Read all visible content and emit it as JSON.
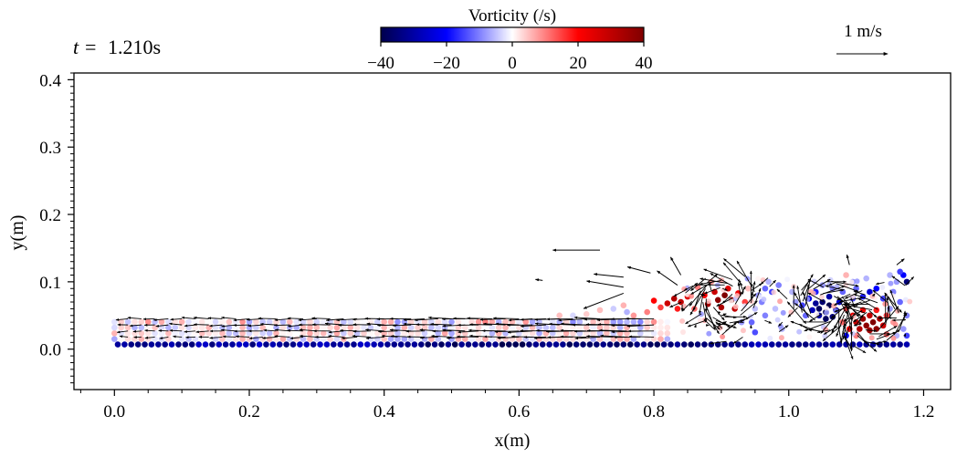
{
  "chart_data": {
    "type": "scatter",
    "time_label": "t = 1.210s",
    "time_prefix": "t =",
    "time_value": "1.210s",
    "xlabel": "x(m)",
    "ylabel": "y(m)",
    "xlim": [
      -0.06,
      1.24
    ],
    "ylim": [
      -0.06,
      0.41
    ],
    "xticks": [
      0.0,
      0.2,
      0.4,
      0.6,
      0.8,
      1.0,
      1.2
    ],
    "xtick_labels": [
      "0.0",
      "0.2",
      "0.4",
      "0.6",
      "0.8",
      "1.0",
      "1.2"
    ],
    "yticks": [
      0.0,
      0.1,
      0.2,
      0.3,
      0.4
    ],
    "ytick_labels": [
      "0.0",
      "0.1",
      "0.2",
      "0.3",
      "0.4"
    ],
    "colorbar": {
      "label": "Vorticity (/s)",
      "range": [
        -40,
        40
      ],
      "ticks": [
        -40,
        -20,
        0,
        20,
        40
      ],
      "tick_labels": [
        "−40",
        "−20",
        "0",
        "20",
        "40"
      ],
      "colormap": [
        "#00004c",
        "#0000ff",
        "#ffffff",
        "#ff0000",
        "#800000"
      ]
    },
    "velocity_scale": {
      "label": "1 m/s",
      "value": 1.0
    },
    "arrow_scale_m_per_ms": 0.076,
    "bottom_row": {
      "x_start": 0.005,
      "x_end": 1.175,
      "step": 0.01,
      "y": 0.007,
      "vorticity": -30
    },
    "fluid_region": {
      "x_start": 0.0,
      "x_end": 0.83,
      "y_bottom": 0.015,
      "y_top": 0.048
    },
    "particles": [
      {
        "x": 0.88,
        "y": 0.067,
        "w": 35
      },
      {
        "x": 0.895,
        "y": 0.073,
        "w": 38
      },
      {
        "x": 0.905,
        "y": 0.08,
        "w": 40
      },
      {
        "x": 0.915,
        "y": 0.073,
        "w": 36
      },
      {
        "x": 0.9,
        "y": 0.062,
        "w": 33
      },
      {
        "x": 0.92,
        "y": 0.06,
        "w": 30
      },
      {
        "x": 0.89,
        "y": 0.085,
        "w": 28
      },
      {
        "x": 0.91,
        "y": 0.09,
        "w": 25
      },
      {
        "x": 0.925,
        "y": 0.083,
        "w": 22
      },
      {
        "x": 0.875,
        "y": 0.08,
        "w": 20
      },
      {
        "x": 0.935,
        "y": 0.07,
        "w": 15
      },
      {
        "x": 0.86,
        "y": 0.06,
        "w": 12
      },
      {
        "x": 0.84,
        "y": 0.07,
        "w": 30
      },
      {
        "x": 0.83,
        "y": 0.075,
        "w": 32
      },
      {
        "x": 0.82,
        "y": 0.068,
        "w": 28
      },
      {
        "x": 0.85,
        "y": 0.078,
        "w": 25
      },
      {
        "x": 0.835,
        "y": 0.06,
        "w": 18
      },
      {
        "x": 0.81,
        "y": 0.062,
        "w": 15
      },
      {
        "x": 0.79,
        "y": 0.055,
        "w": 10
      },
      {
        "x": 0.77,
        "y": 0.05,
        "w": 8
      },
      {
        "x": 0.76,
        "y": 0.055,
        "w": -6
      },
      {
        "x": 0.8,
        "y": 0.072,
        "w": 20
      },
      {
        "x": 0.865,
        "y": 0.092,
        "w": 10
      },
      {
        "x": 0.885,
        "y": 0.1,
        "w": 8
      },
      {
        "x": 0.9,
        "y": 0.102,
        "w": 6
      },
      {
        "x": 0.94,
        "y": 0.09,
        "w": 5
      },
      {
        "x": 0.95,
        "y": 0.06,
        "w": -5
      },
      {
        "x": 0.955,
        "y": 0.08,
        "w": -8
      },
      {
        "x": 0.965,
        "y": 0.09,
        "w": -12
      },
      {
        "x": 0.96,
        "y": 0.07,
        "w": -10
      },
      {
        "x": 0.975,
        "y": 0.085,
        "w": -15
      },
      {
        "x": 0.97,
        "y": 0.1,
        "w": -6
      },
      {
        "x": 0.985,
        "y": 0.095,
        "w": -10
      },
      {
        "x": 0.945,
        "y": 0.04,
        "w": -12
      },
      {
        "x": 0.93,
        "y": 0.04,
        "w": -8
      },
      {
        "x": 0.95,
        "y": 0.025,
        "w": -14
      },
      {
        "x": 0.965,
        "y": 0.05,
        "w": -10
      },
      {
        "x": 0.98,
        "y": 0.06,
        "w": -5
      },
      {
        "x": 0.99,
        "y": 0.03,
        "w": -6
      },
      {
        "x": 1.045,
        "y": 0.06,
        "w": -38
      },
      {
        "x": 1.055,
        "y": 0.055,
        "w": -40
      },
      {
        "x": 1.06,
        "y": 0.065,
        "w": -40
      },
      {
        "x": 1.05,
        "y": 0.07,
        "w": -36
      },
      {
        "x": 1.04,
        "y": 0.068,
        "w": -32
      },
      {
        "x": 1.065,
        "y": 0.048,
        "w": -35
      },
      {
        "x": 1.055,
        "y": 0.045,
        "w": -38
      },
      {
        "x": 1.07,
        "y": 0.058,
        "w": -34
      },
      {
        "x": 1.045,
        "y": 0.05,
        "w": -30
      },
      {
        "x": 1.035,
        "y": 0.058,
        "w": -28
      },
      {
        "x": 1.06,
        "y": 0.078,
        "w": -30
      },
      {
        "x": 1.075,
        "y": 0.07,
        "w": -25
      },
      {
        "x": 1.03,
        "y": 0.075,
        "w": -22
      },
      {
        "x": 1.02,
        "y": 0.065,
        "w": -15
      },
      {
        "x": 1.04,
        "y": 0.085,
        "w": -18
      },
      {
        "x": 1.025,
        "y": 0.05,
        "w": -12
      },
      {
        "x": 1.01,
        "y": 0.07,
        "w": -8
      },
      {
        "x": 1.005,
        "y": 0.085,
        "w": -6
      },
      {
        "x": 1.08,
        "y": 0.085,
        "w": -12
      },
      {
        "x": 1.065,
        "y": 0.09,
        "w": -10
      },
      {
        "x": 1.05,
        "y": 0.095,
        "w": -8
      },
      {
        "x": 1.115,
        "y": 0.035,
        "w": 38
      },
      {
        "x": 1.125,
        "y": 0.04,
        "w": 40
      },
      {
        "x": 1.11,
        "y": 0.045,
        "w": 36
      },
      {
        "x": 1.12,
        "y": 0.028,
        "w": 35
      },
      {
        "x": 1.13,
        "y": 0.03,
        "w": 38
      },
      {
        "x": 1.105,
        "y": 0.03,
        "w": 32
      },
      {
        "x": 1.1,
        "y": 0.04,
        "w": 30
      },
      {
        "x": 1.135,
        "y": 0.045,
        "w": 33
      },
      {
        "x": 1.12,
        "y": 0.05,
        "w": 30
      },
      {
        "x": 1.14,
        "y": 0.035,
        "w": 28
      },
      {
        "x": 1.095,
        "y": 0.05,
        "w": 24
      },
      {
        "x": 1.11,
        "y": 0.058,
        "w": 22
      },
      {
        "x": 1.09,
        "y": 0.03,
        "w": 20
      },
      {
        "x": 1.13,
        "y": 0.058,
        "w": 18
      },
      {
        "x": 1.145,
        "y": 0.05,
        "w": 15
      },
      {
        "x": 1.085,
        "y": 0.06,
        "w": 15
      },
      {
        "x": 1.08,
        "y": 0.04,
        "w": 12
      },
      {
        "x": 1.1,
        "y": 0.02,
        "w": 10
      },
      {
        "x": 1.145,
        "y": 0.022,
        "w": 12
      },
      {
        "x": 1.155,
        "y": 0.04,
        "w": 8
      },
      {
        "x": 1.085,
        "y": 0.02,
        "w": -20
      },
      {
        "x": 1.095,
        "y": 0.075,
        "w": -14
      },
      {
        "x": 1.11,
        "y": 0.078,
        "w": -18
      },
      {
        "x": 1.12,
        "y": 0.085,
        "w": -25
      },
      {
        "x": 1.13,
        "y": 0.09,
        "w": -20
      },
      {
        "x": 1.1,
        "y": 0.09,
        "w": -12
      },
      {
        "x": 1.14,
        "y": 0.075,
        "w": -15
      },
      {
        "x": 1.155,
        "y": 0.085,
        "w": -10
      },
      {
        "x": 1.165,
        "y": 0.07,
        "w": -12
      },
      {
        "x": 1.15,
        "y": 0.06,
        "w": -8
      },
      {
        "x": 1.16,
        "y": 0.1,
        "w": -8
      },
      {
        "x": 1.17,
        "y": 0.11,
        "w": -20
      },
      {
        "x": 1.175,
        "y": 0.1,
        "w": -35
      },
      {
        "x": 1.165,
        "y": 0.115,
        "w": -15
      },
      {
        "x": 1.15,
        "y": 0.11,
        "w": -6
      },
      {
        "x": 1.175,
        "y": 0.05,
        "w": -10
      },
      {
        "x": 1.17,
        "y": 0.03,
        "w": -8
      },
      {
        "x": 1.175,
        "y": 0.02,
        "w": -15
      },
      {
        "x": 1.16,
        "y": 0.02,
        "w": -6
      },
      {
        "x": 1.095,
        "y": 0.1,
        "w": -8
      },
      {
        "x": 1.115,
        "y": 0.105,
        "w": -6
      },
      {
        "x": 1.085,
        "y": 0.11,
        "w": 6
      },
      {
        "x": 0.755,
        "y": 0.065,
        "w": 6
      },
      {
        "x": 0.74,
        "y": 0.06,
        "w": -4
      },
      {
        "x": 0.72,
        "y": 0.058,
        "w": 5
      },
      {
        "x": 0.7,
        "y": 0.052,
        "w": 4
      },
      {
        "x": 0.68,
        "y": 0.05,
        "w": -3
      },
      {
        "x": 0.66,
        "y": 0.05,
        "w": 5
      }
    ],
    "arrows": [
      {
        "x": 0.72,
        "y": 0.147,
        "u": -0.92,
        "v": 0.0
      },
      {
        "x": 0.755,
        "y": 0.107,
        "u": -0.58,
        "v": 0.06
      },
      {
        "x": 0.755,
        "y": 0.092,
        "u": -0.72,
        "v": 0.12
      },
      {
        "x": 0.755,
        "y": 0.083,
        "u": -0.78,
        "v": -0.3
      },
      {
        "x": 0.635,
        "y": 0.102,
        "u": -0.14,
        "v": 0.02
      },
      {
        "x": 0.795,
        "y": 0.113,
        "u": -0.45,
        "v": 0.12
      },
      {
        "x": 0.835,
        "y": 0.095,
        "u": -0.4,
        "v": 0.28
      },
      {
        "x": 0.84,
        "y": 0.11,
        "u": -0.2,
        "v": 0.35
      },
      {
        "x": 1.09,
        "y": 0.125,
        "u": -0.05,
        "v": 0.2
      },
      {
        "x": 1.16,
        "y": 0.125,
        "u": 0.15,
        "v": 0.12
      }
    ]
  }
}
